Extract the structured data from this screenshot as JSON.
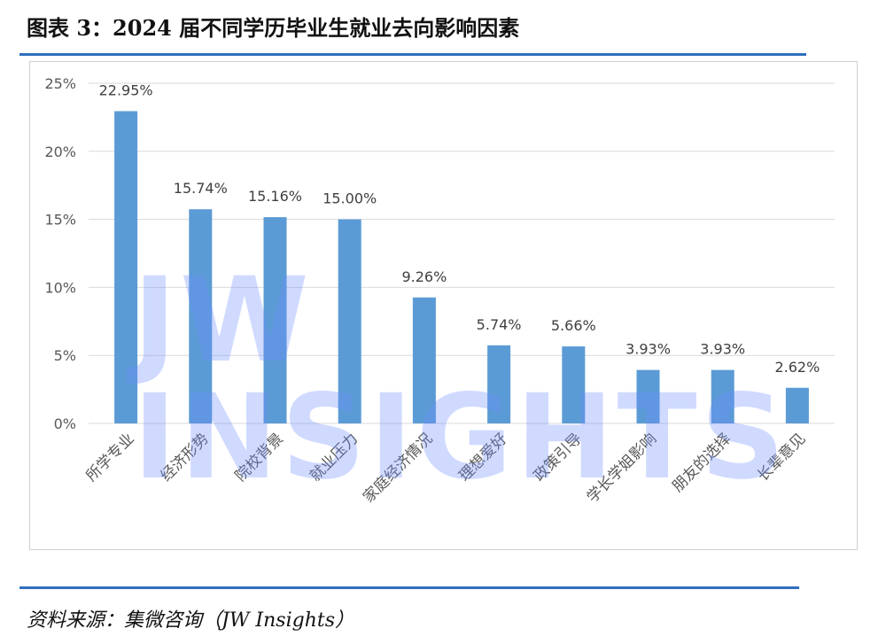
{
  "header": {
    "title": "图表 3：2024 届不同学历毕业生就业去向影响因素"
  },
  "footer": {
    "source": "资料来源：集微咨询（JW Insights）"
  },
  "watermark": {
    "text": "JW INSIGHTS"
  },
  "chart_data": {
    "type": "bar",
    "title": "",
    "xlabel": "",
    "ylabel": "",
    "ylim": [
      0,
      25
    ],
    "yticks": [
      "0%",
      "5%",
      "10%",
      "15%",
      "20%",
      "25%"
    ],
    "grid": true,
    "categories": [
      "所学专业",
      "经济形势",
      "院校背景",
      "就业压力",
      "家庭经济情况",
      "理想爱好",
      "政策引导",
      "学长学姐影响",
      "朋友的选择",
      "长辈意见"
    ],
    "values": [
      22.95,
      15.74,
      15.16,
      15.0,
      9.26,
      5.74,
      5.66,
      3.93,
      3.93,
      2.62
    ],
    "data_labels": [
      "22.95%",
      "15.74%",
      "15.16%",
      "15.00%",
      "9.26%",
      "5.74%",
      "5.66%",
      "3.93%",
      "3.93%",
      "2.62%"
    ],
    "color": "#5b9bd5"
  }
}
